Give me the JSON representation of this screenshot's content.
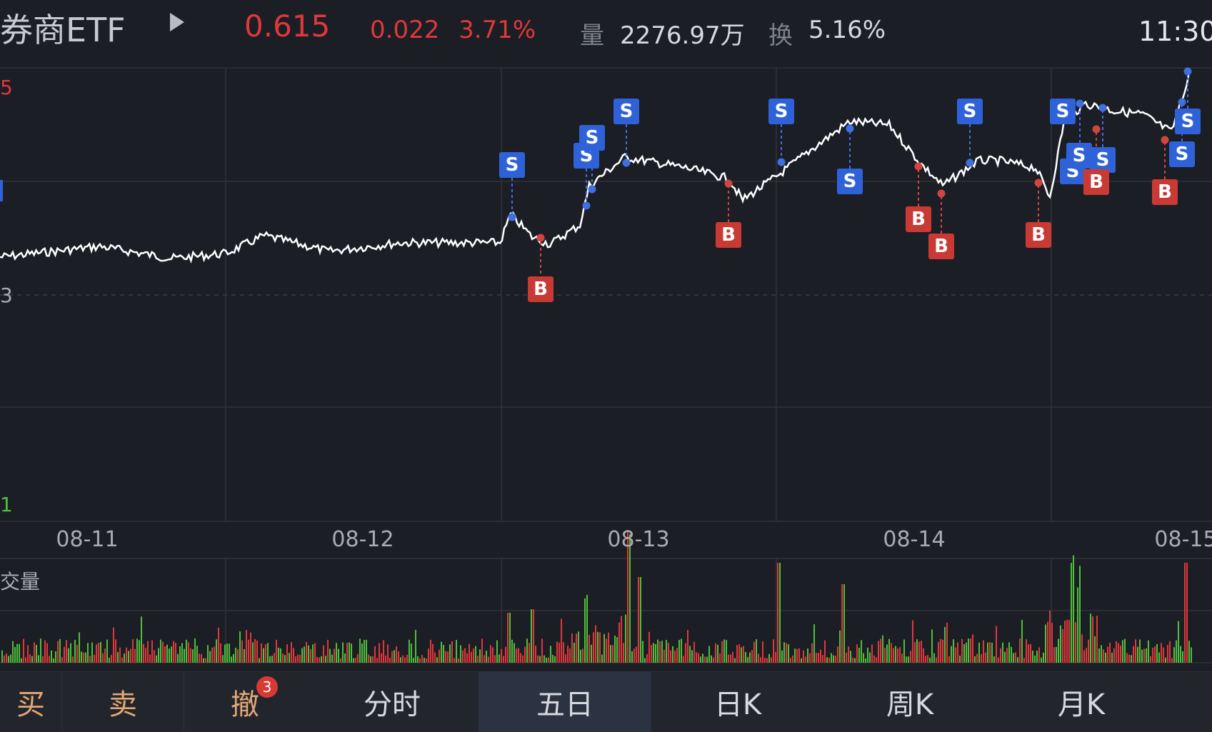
{
  "header": {
    "title": "券商ETF",
    "price": "0.615",
    "change_abs": "0.022",
    "change_pct": "3.71%",
    "volume_label": "量",
    "volume_value": "2276.97万",
    "turnover_label": "换",
    "turnover_value": "5.16%",
    "time": "11:30"
  },
  "axis": {
    "top_label": "5",
    "mid_label": "3",
    "bottom_label": "1",
    "volume_label": "交量"
  },
  "dates": [
    "08-11",
    "08-12",
    "08-13",
    "08-14",
    "08-15"
  ],
  "markers": [
    {
      "type": "S",
      "label": "S"
    },
    {
      "type": "B",
      "label": "B"
    },
    {
      "type": "S",
      "label": "S"
    },
    {
      "type": "S",
      "label": "S"
    },
    {
      "type": "S",
      "label": "S"
    },
    {
      "type": "B",
      "label": "B"
    },
    {
      "type": "S",
      "label": "S"
    },
    {
      "type": "S",
      "label": "S"
    },
    {
      "type": "B",
      "label": "B"
    },
    {
      "type": "B",
      "label": "B"
    },
    {
      "type": "S",
      "label": "S"
    },
    {
      "type": "B",
      "label": "B"
    },
    {
      "type": "S",
      "label": "S"
    },
    {
      "type": "S",
      "label": "S"
    },
    {
      "type": "S",
      "label": "S"
    },
    {
      "type": "S",
      "label": "S"
    },
    {
      "type": "B",
      "label": "B"
    },
    {
      "type": "B",
      "label": "B"
    },
    {
      "type": "S",
      "label": "S"
    },
    {
      "type": "S",
      "label": "S"
    }
  ],
  "tabs": {
    "buy": "买",
    "sell": "卖",
    "cancel": "撤",
    "cancel_badge": "3",
    "intraday": "分时",
    "five_day": "五日",
    "daily_k": "日K",
    "weekly_k": "周K",
    "monthly_k": "月K"
  },
  "colors": {
    "up": "#e0373a",
    "down": "#4fbf3a",
    "sell_marker": "#2f62d8",
    "buy_marker": "#c93a35",
    "line": "#ffffff"
  }
}
